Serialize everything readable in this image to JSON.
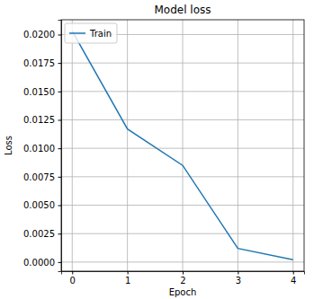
{
  "chart_data": {
    "type": "line",
    "title": "Model loss",
    "x_label": "Epoch",
    "y_label": "Loss",
    "x": [
      0,
      1,
      2,
      3,
      4
    ],
    "series": [
      {
        "name": "Train",
        "color": "#1f77b4",
        "values": [
          0.0203,
          0.0117,
          0.0085,
          0.0012,
          0.0002
        ]
      }
    ],
    "xlim": [
      -0.2,
      4.2
    ],
    "xticks": [
      0,
      1,
      2,
      3,
      4
    ],
    "ylim": [
      -0.0008,
      0.0213
    ],
    "yticks": [
      {
        "value": 0,
        "label": "0.0000"
      },
      {
        "value": 0.0025,
        "label": "0.0025"
      },
      {
        "value": 0.005,
        "label": "0.0050"
      },
      {
        "value": 0.0075,
        "label": "0.0075"
      },
      {
        "value": 0.01,
        "label": "0.0100"
      },
      {
        "value": 0.0125,
        "label": "0.0125"
      },
      {
        "value": 0.015,
        "label": "0.0150"
      },
      {
        "value": 0.0175,
        "label": "0.0175"
      },
      {
        "value": 0.02,
        "label": "0.0200"
      }
    ],
    "grid": true,
    "legend": "upper left"
  }
}
